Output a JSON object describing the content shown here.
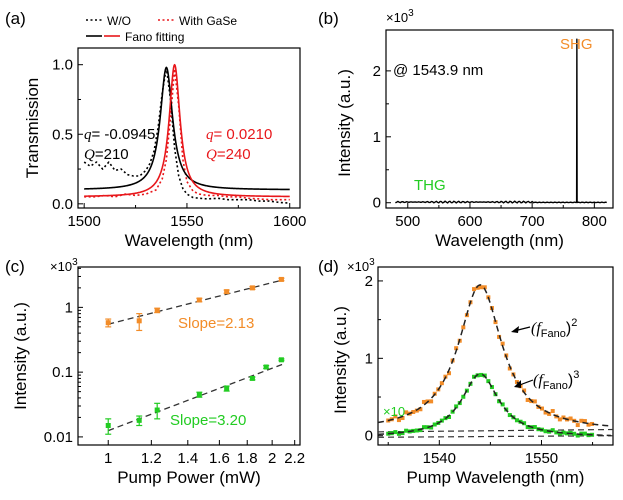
{
  "colors": {
    "black": "#000000",
    "red": "#e8171b",
    "orange": "#f28c28",
    "green": "#22cc22",
    "dash": "#333333"
  },
  "chart_data": [
    {
      "panel": "(a)",
      "type": "line",
      "xlabel": "Wavelength (nm)",
      "ylabel": "Transmission",
      "xlim": [
        1497,
        1605
      ],
      "ylim": [
        -0.03,
        1.12
      ],
      "xticks": [
        1500,
        1550,
        1600
      ],
      "yticks": [
        0.0,
        0.5,
        1.0
      ],
      "legend": [
        "W/O",
        "With GaSe",
        "Fano fitting"
      ],
      "annotations": {
        "black_q": "q= -0.0945",
        "black_Q": "Q=210",
        "red_q": "q= 0.0210",
        "red_Q": "Q=240"
      },
      "series": [
        {
          "name": "W/O",
          "style": "dotted",
          "color": "black",
          "x": [
            1500,
            1503,
            1506,
            1509,
            1512,
            1515,
            1518,
            1521,
            1524,
            1527,
            1530,
            1532,
            1534,
            1536,
            1538,
            1540,
            1542,
            1544,
            1546,
            1548,
            1550,
            1553,
            1556,
            1560,
            1565,
            1570,
            1575,
            1580,
            1585,
            1590,
            1595,
            1600
          ],
          "y": [
            0.3,
            0.27,
            0.3,
            0.25,
            0.3,
            0.24,
            0.25,
            0.21,
            0.2,
            0.2,
            0.24,
            0.29,
            0.38,
            0.55,
            0.8,
            0.98,
            0.75,
            0.4,
            0.2,
            0.11,
            0.07,
            0.045,
            0.04,
            0.035,
            0.04,
            0.03,
            0.03,
            0.03,
            0.02,
            0.02,
            0.01,
            0.005
          ]
        },
        {
          "name": "With GaSe",
          "style": "dotted",
          "color": "red",
          "x": [
            1500,
            1505,
            1510,
            1515,
            1520,
            1525,
            1530,
            1535,
            1538,
            1540,
            1542,
            1544,
            1546,
            1548,
            1550,
            1553,
            1556,
            1560,
            1565,
            1570,
            1575,
            1580,
            1590,
            1600
          ],
          "y": [
            0.05,
            0.05,
            0.06,
            0.05,
            0.07,
            0.06,
            0.07,
            0.1,
            0.18,
            0.32,
            0.62,
            0.97,
            0.7,
            0.32,
            0.16,
            0.09,
            0.07,
            0.06,
            0.06,
            0.05,
            0.05,
            0.04,
            0.03,
            0.03
          ]
        },
        {
          "name": "Fano fitting (W/O)",
          "style": "solid",
          "color": "black",
          "x0": 1540.0,
          "fwhm": 7.3,
          "base": 0.1,
          "amp": 0.88
        },
        {
          "name": "Fano fitting (With GaSe)",
          "style": "solid",
          "color": "red",
          "x0": 1544.0,
          "fwhm": 6.4,
          "base": 0.05,
          "amp": 0.95
        }
      ]
    },
    {
      "panel": "(b)",
      "type": "line",
      "xlabel": "Wavelength (nm)",
      "ylabel": "Intensity (a.u.)",
      "scale_label": "×10",
      "scale_exp": "3",
      "xlim": [
        465,
        830
      ],
      "ylim": [
        -0.08,
        2.62
      ],
      "xticks": [
        500,
        600,
        700,
        800
      ],
      "yticks": [
        0,
        1,
        2
      ],
      "annotations": {
        "pump": "@ 1543.9 nm",
        "shg": "SHG",
        "thg": "THG"
      },
      "series": [
        {
          "name": "spectrum",
          "color": "black",
          "peak_x": 771.9,
          "peak_y": 2.48,
          "x_start": 480,
          "x_end": 820,
          "baseline": 0.01
        }
      ]
    },
    {
      "panel": "(c)",
      "type": "scatter",
      "xlabel": "Pump Power (mW)",
      "ylabel": "Intensity (a.u.)",
      "scale_label": "×10",
      "scale_exp": "3",
      "xscale": "log",
      "yscale": "log",
      "xlim": [
        0.88,
        2.25
      ],
      "ylim": [
        0.0075,
        4.2
      ],
      "xticks": [
        1,
        1.2,
        1.4,
        1.6,
        1.8,
        2,
        2.2
      ],
      "xtick_labels": [
        "1",
        "1.2",
        "1.4",
        "1.6",
        "1.8",
        "2",
        "2.2"
      ],
      "yticks": [
        0.01,
        0.1,
        1
      ],
      "ytick_labels": [
        "0.01",
        "0.1",
        "1"
      ],
      "annotations": {
        "shg_slope": "Slope=2.13",
        "thg_slope": "Slope=3.20"
      },
      "series": [
        {
          "name": "SHG",
          "color": "orange",
          "x": [
            1.0,
            1.14,
            1.23,
            1.47,
            1.65,
            1.84,
            2.08
          ],
          "y": [
            0.58,
            0.62,
            0.9,
            1.3,
            1.75,
            2.0,
            2.7
          ],
          "err": [
            0.08,
            0.18,
            0.07,
            0.08,
            0.1,
            0.1,
            0.12
          ],
          "fit_slope": 2.13,
          "fit_y_at_1": 0.55
        },
        {
          "name": "THG",
          "color": "green",
          "x": [
            1.0,
            1.14,
            1.23,
            1.47,
            1.65,
            1.84,
            1.95,
            2.08
          ],
          "y": [
            0.015,
            0.018,
            0.026,
            0.045,
            0.056,
            0.08,
            0.12,
            0.155
          ],
          "err": [
            0.004,
            0.003,
            0.007,
            0.004,
            0.005,
            0.004,
            0.006,
            0.005
          ],
          "fit_slope": 3.2,
          "fit_y_at_1": 0.0125
        }
      ]
    },
    {
      "panel": "(d)",
      "type": "scatter",
      "xlabel": "Pump Wavelength (nm)",
      "ylabel": "Intensity (a.u.)",
      "scale_label": "×10",
      "scale_exp": "3",
      "xlim": [
        1534,
        1557
      ],
      "ylim": [
        -0.12,
        2.18
      ],
      "xticks": [
        1540,
        1550
      ],
      "yticks": [
        0,
        1,
        2
      ],
      "annotations": {
        "x10": "×10",
        "fano2_base": "(f",
        "fano2_sub": "Fano",
        "fano2_close": ")",
        "fano2_exp": "2",
        "fano3_base": "(f",
        "fano3_sub": "Fano",
        "fano3_close": ")",
        "fano3_exp": "3"
      },
      "series": [
        {
          "name": "SHG",
          "color": "orange",
          "x0": 1544.0,
          "fwhm": 5.2,
          "peak": 1.9,
          "base": 0.05,
          "x_start": 1535,
          "x_end": 1555
        },
        {
          "name": "THG ×10",
          "color": "green",
          "x0": 1544.0,
          "fwhm": 4.4,
          "peak": 0.82,
          "base": -0.02,
          "x_start": 1535,
          "x_end": 1555
        }
      ]
    }
  ]
}
